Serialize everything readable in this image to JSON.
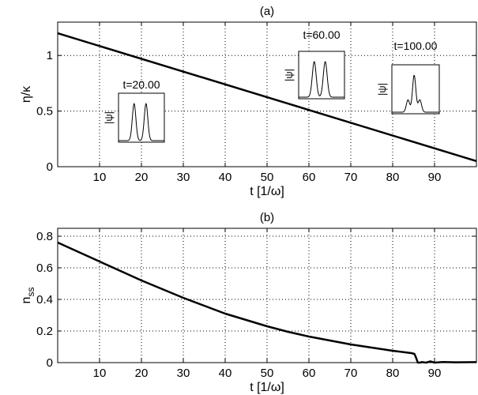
{
  "chart_data": [
    {
      "type": "line",
      "title": "(a)",
      "xlabel": "t [1/ω]",
      "ylabel": "η/κ",
      "xlim": [
        0,
        100
      ],
      "ylim": [
        0,
        1.3
      ],
      "xticks": [
        10,
        20,
        30,
        40,
        50,
        60,
        70,
        80,
        90
      ],
      "yticks": [
        0,
        0.5,
        1
      ],
      "yticklabels": [
        "0",
        "0.5",
        "1"
      ],
      "grid": true,
      "series": [
        {
          "x": [
            0,
            100
          ],
          "y": [
            1.2,
            0.05
          ]
        }
      ],
      "insets": [
        {
          "title": "t=20.00",
          "ylabel": "|ψ|",
          "at_t": 20,
          "peaks": [
            {
              "pos": 0.34,
              "h": 0.9,
              "w": 0.055
            },
            {
              "pos": 0.6,
              "h": 0.9,
              "w": 0.055
            }
          ]
        },
        {
          "title": "t=60.00",
          "ylabel": "|ψ|",
          "at_t": 60,
          "peaks": [
            {
              "pos": 0.34,
              "h": 0.9,
              "w": 0.06
            },
            {
              "pos": 0.58,
              "h": 0.9,
              "w": 0.06
            }
          ]
        },
        {
          "title": "t=100.00",
          "ylabel": "|ψ|",
          "at_t": 100,
          "peaks": [
            {
              "pos": 0.34,
              "h": 0.3,
              "w": 0.05
            },
            {
              "pos": 0.47,
              "h": 0.9,
              "w": 0.05
            },
            {
              "pos": 0.59,
              "h": 0.3,
              "w": 0.05
            }
          ]
        }
      ]
    },
    {
      "type": "line",
      "title": "(b)",
      "xlabel": "t [1/ω]",
      "ylabel": "n",
      "ylabel_sub": "ss",
      "xlim": [
        0,
        100
      ],
      "ylim": [
        0,
        0.85
      ],
      "xticks": [
        10,
        20,
        30,
        40,
        50,
        60,
        70,
        80,
        90
      ],
      "yticks": [
        0,
        0.2,
        0.4,
        0.6,
        0.8
      ],
      "yticklabels": [
        "0",
        "0.2",
        "0.4",
        "0.6",
        "0.8"
      ],
      "grid": true,
      "series": [
        {
          "x": [
            0,
            5,
            10,
            15,
            20,
            25,
            30,
            35,
            40,
            45,
            50,
            55,
            60,
            65,
            70,
            75,
            80,
            83,
            84.5,
            85.2,
            85.6,
            86,
            86.5,
            87,
            88,
            89,
            90,
            92,
            95,
            100
          ],
          "y": [
            0.76,
            0.7,
            0.64,
            0.58,
            0.52,
            0.465,
            0.41,
            0.36,
            0.31,
            0.27,
            0.23,
            0.195,
            0.165,
            0.14,
            0.115,
            0.095,
            0.075,
            0.065,
            0.06,
            0.055,
            0.03,
            0.0,
            0.0,
            0.003,
            0.0,
            0.008,
            0.0,
            0.004,
            0.002,
            0.003
          ]
        }
      ]
    }
  ]
}
